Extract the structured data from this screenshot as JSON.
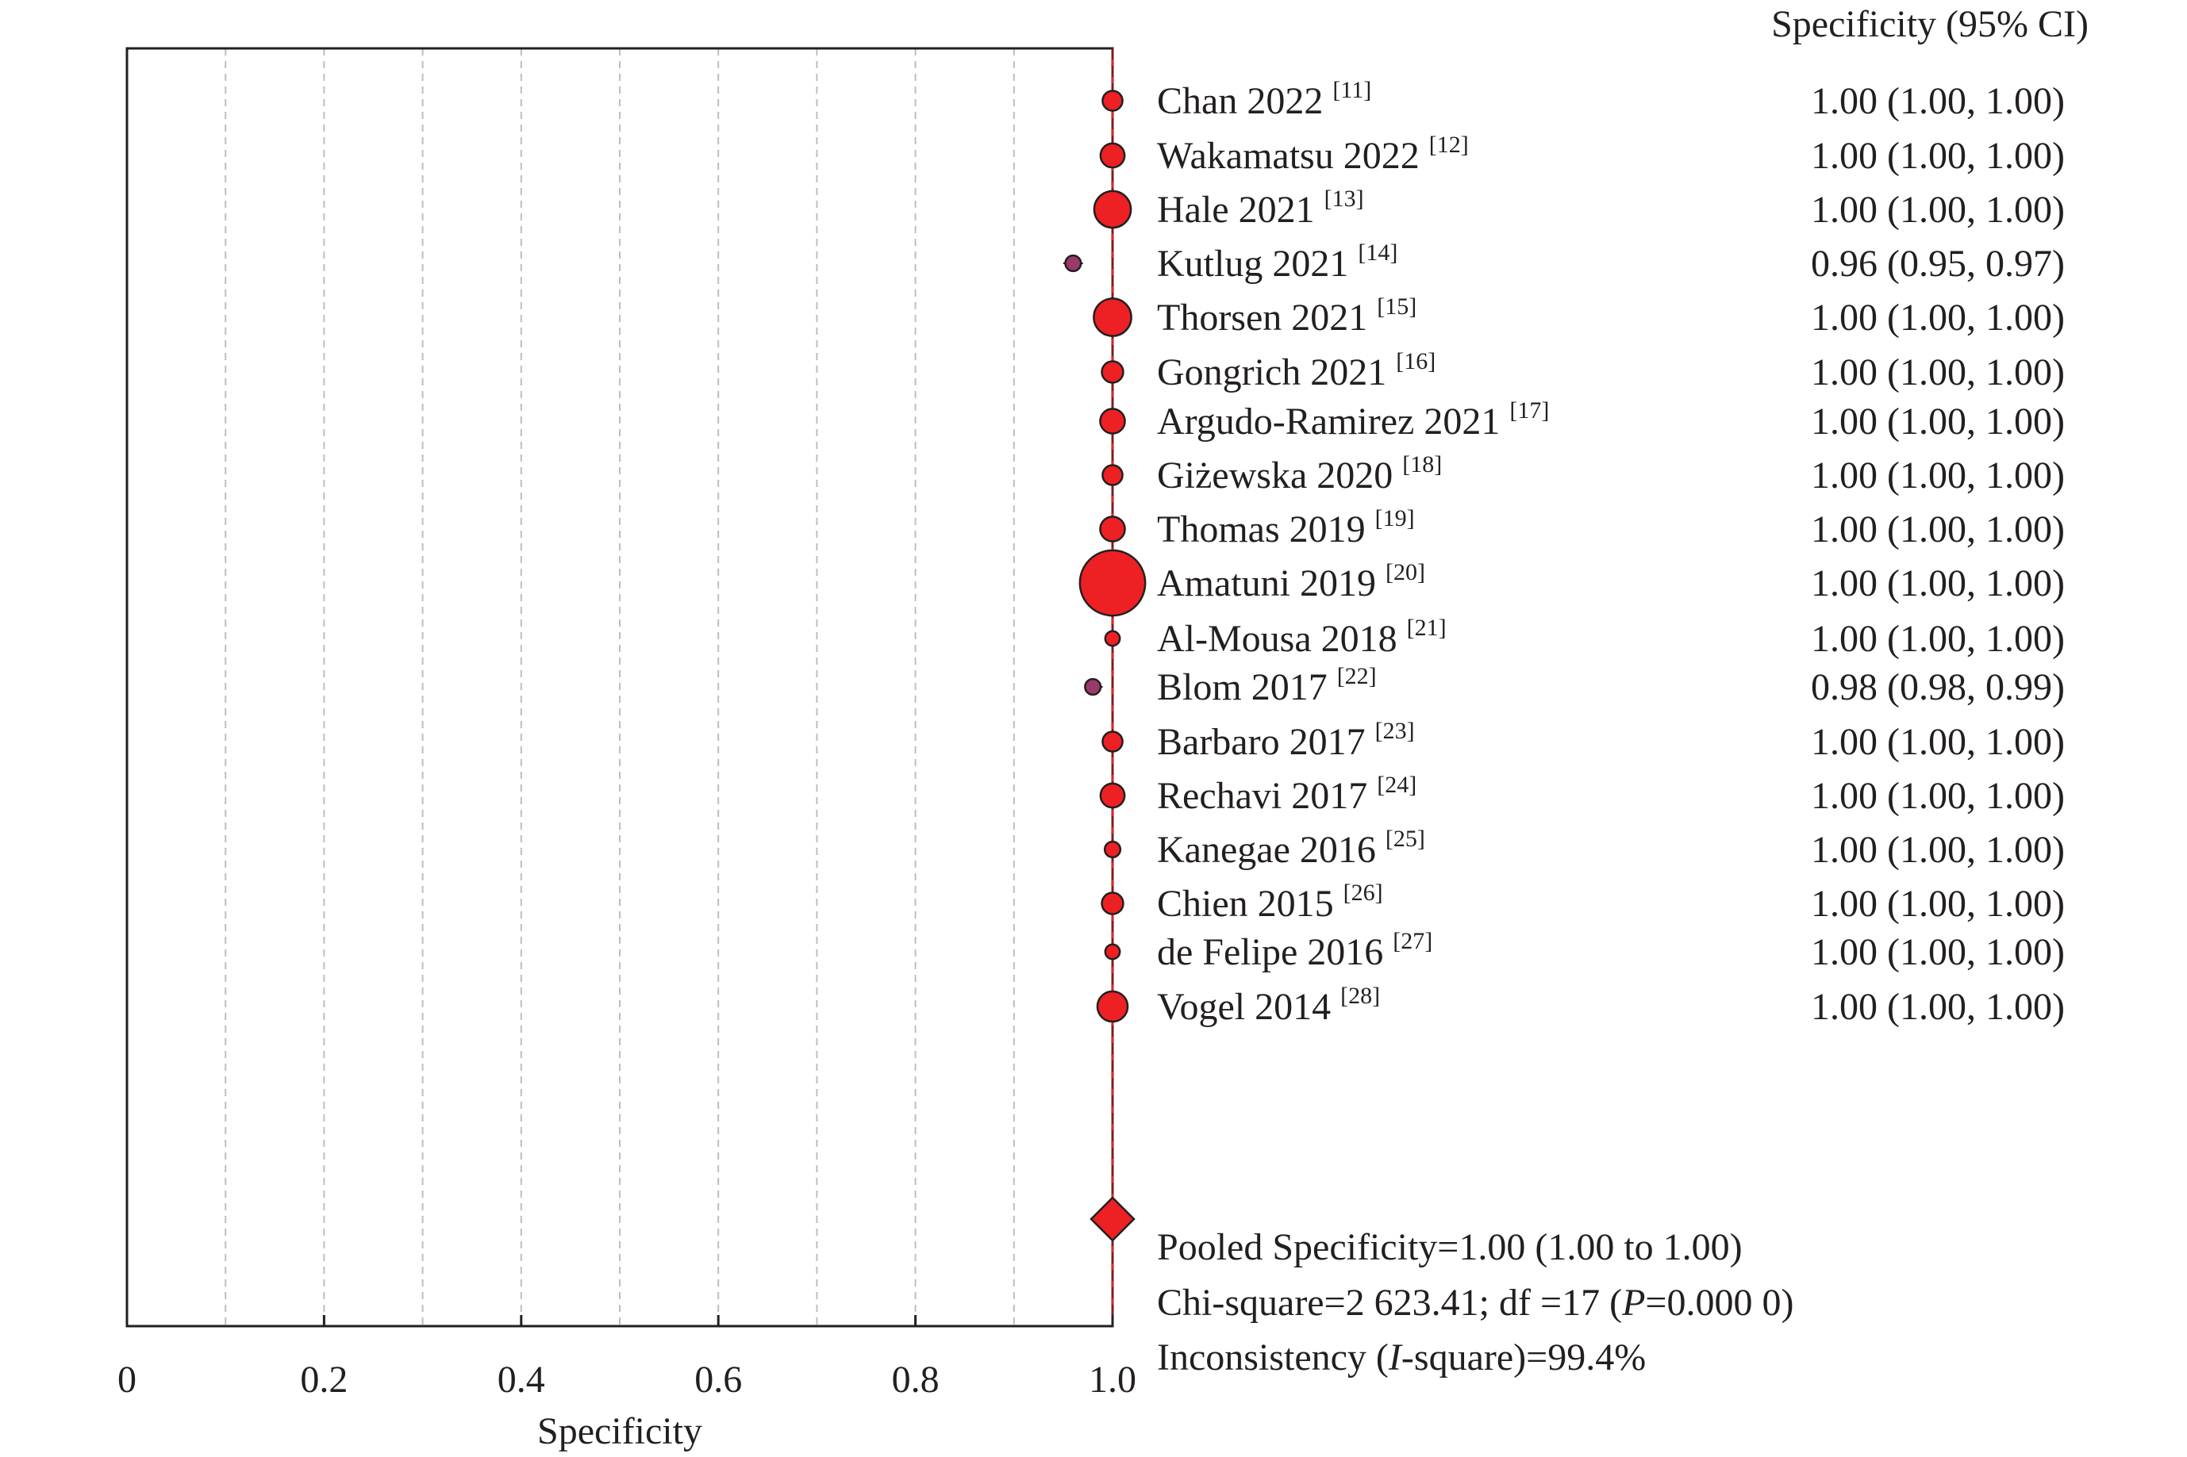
{
  "chart_data": {
    "type": "forest",
    "xlabel": "Specificity",
    "xlim": [
      0,
      1.0
    ],
    "xticks": [
      0,
      0.2,
      0.4,
      0.6,
      0.8,
      1.0
    ],
    "xtick_labels": [
      "0",
      "0.2",
      "0.4",
      "0.6",
      "0.8",
      "1.0"
    ],
    "grid": "vertical dashed at every 0.1",
    "column_header": "Specificity (95% CI)",
    "colors": {
      "marker": "#ed2024",
      "marker_outline": "#231f20",
      "reference_line": "#ed2024",
      "grid": "#bcbec0"
    },
    "studies": [
      {
        "name": "Chan 2022",
        "ref": "[11]",
        "estimate": 1.0,
        "ci_low": 1.0,
        "ci_high": 1.0,
        "weight": 1.3,
        "label": "1.00  (1.00, 1.00)"
      },
      {
        "name": "Wakamatsu 2022",
        "ref": "[12]",
        "estimate": 1.0,
        "ci_low": 1.0,
        "ci_high": 1.0,
        "weight": 1.9,
        "label": "1.00  (1.00, 1.00)"
      },
      {
        "name": "Hale 2021",
        "ref": "[13]",
        "estimate": 1.0,
        "ci_low": 1.0,
        "ci_high": 1.0,
        "weight": 4.4,
        "label": "1.00  (1.00, 1.00)"
      },
      {
        "name": "Kutlug 2021",
        "ref": "[14]",
        "estimate": 0.96,
        "ci_low": 0.95,
        "ci_high": 0.97,
        "weight": 0.8,
        "label": "0.96  (0.95, 0.97)"
      },
      {
        "name": "Thorsen 2021",
        "ref": "[15]",
        "estimate": 1.0,
        "ci_low": 1.0,
        "ci_high": 1.0,
        "weight": 4.6,
        "label": "1.00  (1.00, 1.00)"
      },
      {
        "name": "Gongrich 2021",
        "ref": "[16]",
        "estimate": 1.0,
        "ci_low": 1.0,
        "ci_high": 1.0,
        "weight": 1.5,
        "label": "1.00  (1.00, 1.00)"
      },
      {
        "name": "Argudo-Ramirez 2021",
        "ref": "[17]",
        "estimate": 1.0,
        "ci_low": 1.0,
        "ci_high": 1.0,
        "weight": 2.0,
        "label": "1.00  (1.00, 1.00)"
      },
      {
        "name": "Giżewska 2020",
        "ref": "[18]",
        "estimate": 1.0,
        "ci_low": 1.0,
        "ci_high": 1.0,
        "weight": 1.3,
        "label": "1.00  (1.00, 1.00)"
      },
      {
        "name": "Thomas 2019",
        "ref": "[19]",
        "estimate": 1.0,
        "ci_low": 1.0,
        "ci_high": 1.0,
        "weight": 2.0,
        "label": "1.00  (1.00, 1.00)"
      },
      {
        "name": "Amatuni 2019",
        "ref": "[20]",
        "estimate": 1.0,
        "ci_low": 1.0,
        "ci_high": 1.0,
        "weight": 14.0,
        "label": "1.00  (1.00, 1.00)"
      },
      {
        "name": "Al-Mousa 2018",
        "ref": "[21]",
        "estimate": 1.0,
        "ci_low": 1.0,
        "ci_high": 1.0,
        "weight": 0.7,
        "label": "1.00  (1.00, 1.00)"
      },
      {
        "name": "Blom 2017",
        "ref": "[22]",
        "estimate": 0.98,
        "ci_low": 0.98,
        "ci_high": 0.99,
        "weight": 0.8,
        "label": "0.98  (0.98, 0.99)"
      },
      {
        "name": "Barbaro 2017",
        "ref": "[23]",
        "estimate": 1.0,
        "ci_low": 1.0,
        "ci_high": 1.0,
        "weight": 1.3,
        "label": "1.00  (1.00, 1.00)"
      },
      {
        "name": "Rechavi 2017",
        "ref": "[24]",
        "estimate": 1.0,
        "ci_low": 1.0,
        "ci_high": 1.0,
        "weight": 1.9,
        "label": "1.00  (1.00, 1.00)"
      },
      {
        "name": "Kanegae 2016",
        "ref": "[25]",
        "estimate": 1.0,
        "ci_low": 1.0,
        "ci_high": 1.0,
        "weight": 0.8,
        "label": "1.00  (1.00, 1.00)"
      },
      {
        "name": "Chien 2015",
        "ref": "[26]",
        "estimate": 1.0,
        "ci_low": 1.0,
        "ci_high": 1.0,
        "weight": 1.5,
        "label": "1.00  (1.00, 1.00)"
      },
      {
        "name": "de Felipe 2016",
        "ref": "[27]",
        "estimate": 1.0,
        "ci_low": 1.0,
        "ci_high": 1.0,
        "weight": 0.7,
        "label": "1.00  (1.00, 1.00)"
      },
      {
        "name": "Vogel 2014",
        "ref": "[28]",
        "estimate": 1.0,
        "ci_low": 1.0,
        "ci_high": 1.0,
        "weight": 3.0,
        "label": "1.00  (1.00, 1.00)"
      }
    ],
    "pooled": {
      "estimate": 1.0,
      "ci_low": 1.0,
      "ci_high": 1.0
    },
    "summary": {
      "pooled_label": "Pooled Specificity=1.00 (1.00 to 1.00)",
      "chi_prefix": "Chi-square=2 623.41; df =17 (",
      "chi_italic": "P",
      "chi_suffix": "=0.000 0)",
      "incons_prefix": "Inconsistency (",
      "incons_italic": "I",
      "incons_suffix": "-square)=99.4%"
    }
  }
}
